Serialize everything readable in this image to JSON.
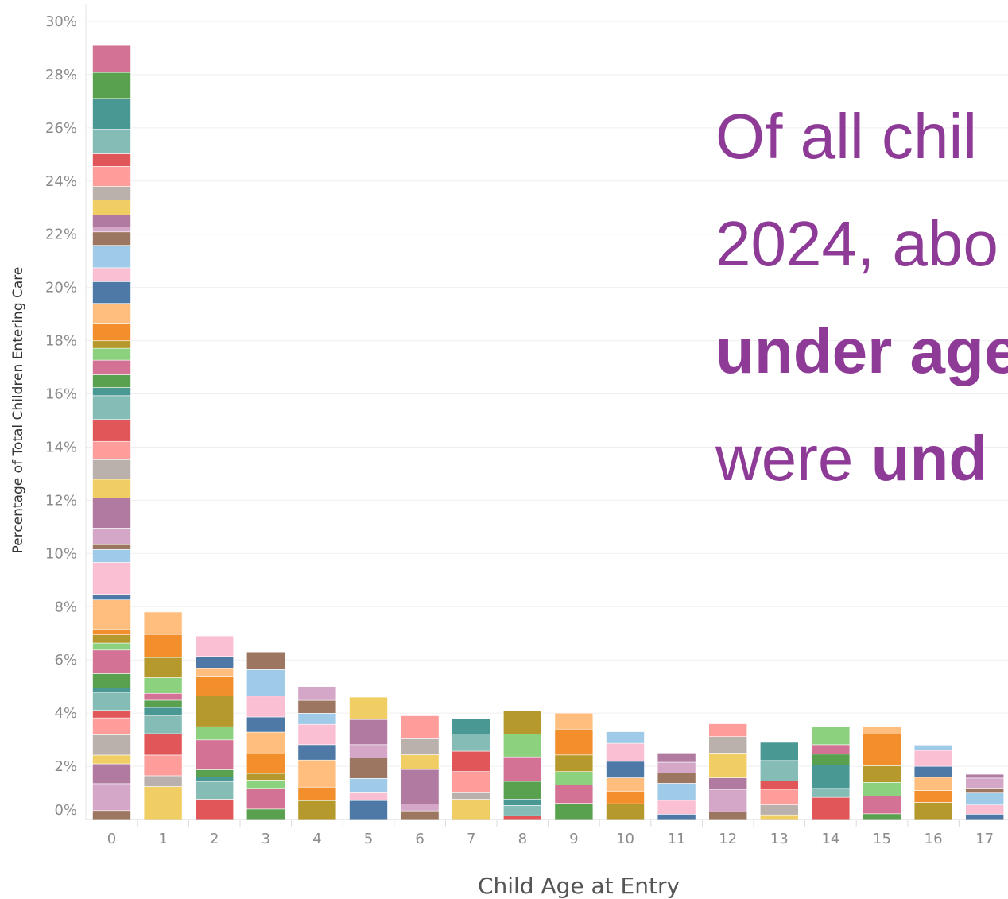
{
  "headline": {
    "line1": "Of all chil",
    "line2": "2024, abo",
    "line3_bold": "under age",
    "line4_plain": "were ",
    "line4_bold": "und"
  },
  "chart_data": {
    "type": "bar",
    "stacked": true,
    "title": "",
    "xlabel": "Child Age at Entry",
    "ylabel": "Percentage of Total Children Entering Care",
    "categories": [
      "0",
      "1",
      "2",
      "3",
      "4",
      "5",
      "6",
      "7",
      "8",
      "9",
      "10",
      "11",
      "12",
      "13",
      "14",
      "15",
      "16",
      "17"
    ],
    "totals": [
      29.1,
      7.8,
      6.9,
      6.3,
      5.0,
      4.6,
      3.9,
      3.8,
      4.1,
      4.0,
      3.3,
      2.5,
      3.6,
      2.9,
      3.5,
      3.5,
      2.8,
      1.7
    ],
    "ylim": [
      0,
      30
    ],
    "yticks": [
      "0%",
      "2%",
      "4%",
      "6%",
      "8%",
      "10%",
      "12%",
      "14%",
      "16%",
      "18%",
      "20%",
      "22%",
      "24%",
      "26%",
      "28%",
      "30%"
    ],
    "grid": true,
    "legend": "none",
    "palette": [
      "#9c7660",
      "#d4a6c8",
      "#b07aa1",
      "#f1ce63",
      "#bab0ac",
      "#ff9d9a",
      "#e15759",
      "#86bcb6",
      "#499894",
      "#59a14f",
      "#d37295",
      "#8cd17d",
      "#b6992d",
      "#f28e2b",
      "#ffbe7d",
      "#4e79a7",
      "#fabfd2",
      "#a0cbe8"
    ],
    "series_description": "Each bar is a stack of many thin colored segments (categories not labeled)"
  }
}
